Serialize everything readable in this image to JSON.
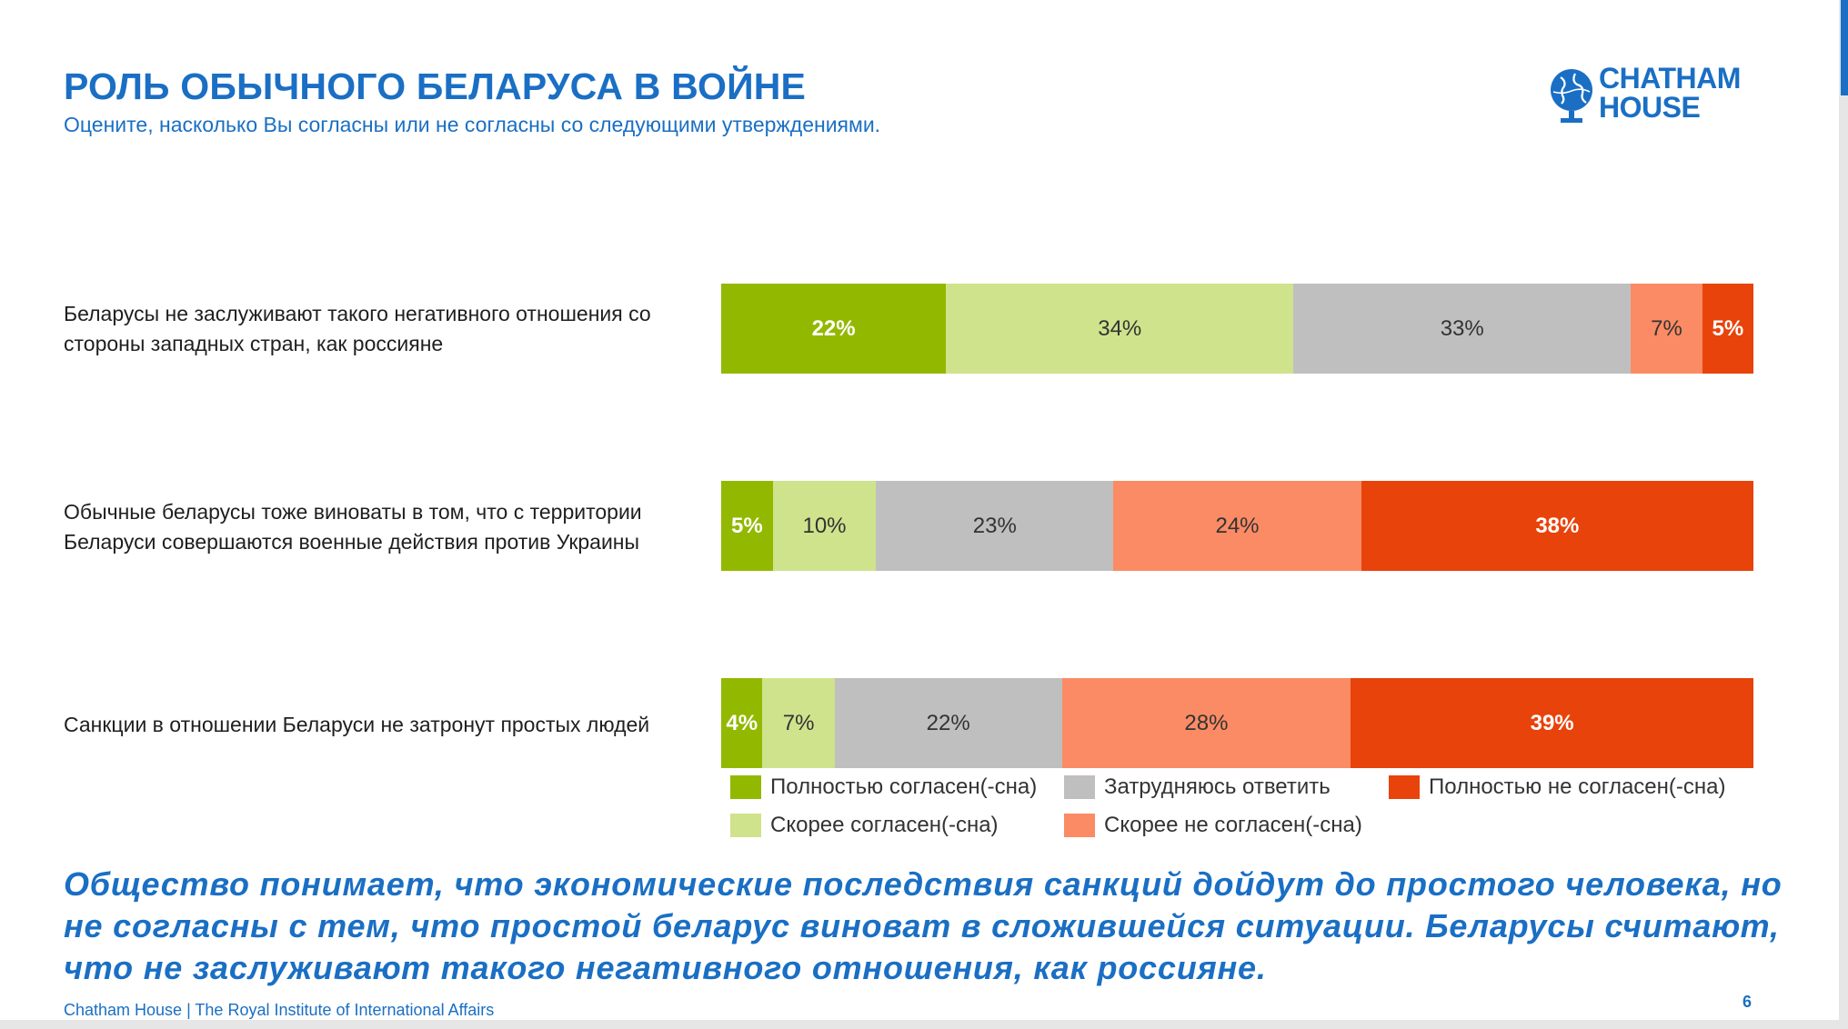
{
  "header": {
    "title": "РОЛЬ ОБЫЧНОГО БЕЛАРУСА В ВОЙНЕ",
    "subtitle": "Оцените, насколько Вы согласны или не согласны со следующими утверждениями."
  },
  "logo": {
    "line1": "CHATHAM",
    "line2": "HOUSE",
    "icon": "globe-icon"
  },
  "colors": {
    "title_blue": "#1a6fc4",
    "fully_agree": "#93b800",
    "rather_agree": "#cfe38c",
    "hard_to_say": "#bfbfbf",
    "rather_disagree": "#fb8b64",
    "fully_disagree": "#e8430b"
  },
  "chart_data": {
    "type": "bar",
    "orientation": "horizontal",
    "stacked": true,
    "normalized": "100%",
    "categories": [
      "Беларусы не заслуживают такого негативного отношения со стороны западных стран, как россияне",
      "Обычные беларусы тоже виноваты в том, что с территории Беларуси совершаются военные действия против Украины",
      "Санкции в отношении Беларуси не затронут простых людей"
    ],
    "series": [
      {
        "name": "Полностью согласен(-сна)",
        "values": [
          22,
          5,
          4
        ],
        "labels": [
          "22%",
          "5%",
          "4%"
        ],
        "color": "#93b800"
      },
      {
        "name": "Скорее согласен(-сна)",
        "values": [
          34,
          10,
          7
        ],
        "labels": [
          "34%",
          "10%",
          "7%"
        ],
        "color": "#cfe38c"
      },
      {
        "name": "Затрудняюсь ответить",
        "values": [
          33,
          23,
          22
        ],
        "labels": [
          "33%",
          "23%",
          "22%"
        ],
        "color": "#bfbfbf"
      },
      {
        "name": "Скорее не согласен(-сна)",
        "values": [
          7,
          24,
          28
        ],
        "labels": [
          "7%",
          "24%",
          "28%"
        ],
        "color": "#fb8b64"
      },
      {
        "name": "Полностью не согласен(-сна)",
        "values": [
          5,
          38,
          39
        ],
        "labels": [
          "5%",
          "38%",
          "39%"
        ],
        "color": "#e8430b"
      }
    ],
    "legend": [
      {
        "name": "Полностью согласен(-сна)",
        "color": "#93b800"
      },
      {
        "name": "Затрудняюсь ответить",
        "color": "#bfbfbf"
      },
      {
        "name": "Полностью не согласен(-сна)",
        "color": "#e8430b"
      },
      {
        "name": "Скорее согласен(-сна)",
        "color": "#cfe38c"
      },
      {
        "name": "Скорее не согласен(-сна)",
        "color": "#fb8b64"
      }
    ],
    "legend_placement": "bottom",
    "grid": false,
    "xlim": [
      0,
      100
    ]
  },
  "conclusion": "Общество понимает, что экономические последствия санкций дойдут до простого человека, но не согласны с тем, что простой беларус виноват в сложившейся ситуации. Беларусы считают, что не заслуживают такого негативного отношения, как россияне.",
  "footer": {
    "text": "Chatham House  |  The Royal Institute of International Affairs",
    "page_number": "6"
  }
}
